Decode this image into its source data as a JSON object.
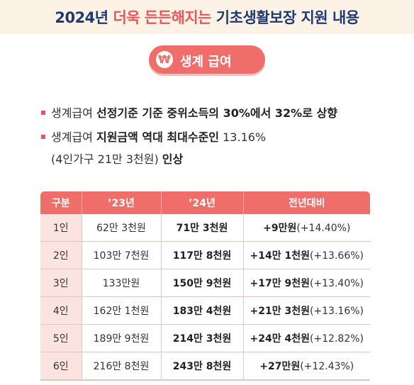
{
  "header": {
    "title_a": "2024년 ",
    "title_b": "더욱 든든해지는",
    "title_c": " 기초생활보장 지원 내용"
  },
  "section": {
    "icon": "won-coin-icon",
    "won_symbol": "₩",
    "label": "생계 급여"
  },
  "bullets": [
    {
      "pre": "생계급여 ",
      "bold": "선정기준 기준 중위소득의 30%에서 32%로 상향",
      "post": ""
    },
    {
      "pre": "생계급여 ",
      "bold": "지원금액 역대 최대수준인",
      "post": " 13.16%"
    }
  ],
  "bullet_cont": {
    "text": "(4인가구 21만 3천원) ",
    "bold": "인상"
  },
  "table": {
    "headers": [
      "구분",
      "’23년",
      "’24년",
      "전년대비"
    ],
    "rows": [
      {
        "group": "1인",
        "y23": "62만 3천원",
        "y24": "71만 3천원",
        "diff_amt": "+9만원",
        "diff_pct": "(+14.40%)"
      },
      {
        "group": "2인",
        "y23": "103만 7천원",
        "y24": "117만 8천원",
        "diff_amt": "+14만 1천원",
        "diff_pct": "(+13.66%)"
      },
      {
        "group": "3인",
        "y23": "133만원",
        "y24": "150만 9천원",
        "diff_amt": "+17만 9천원",
        "diff_pct": "(+13.40%)"
      },
      {
        "group": "4인",
        "y23": "162만 1천원",
        "y24": "183만 4천원",
        "diff_amt": "+21만 3천원",
        "diff_pct": "(+13.16%)"
      },
      {
        "group": "5인",
        "y23": "189만 9천원",
        "y24": "214만 3천원",
        "diff_amt": "+24만 4천원",
        "diff_pct": "(+12.82%)"
      },
      {
        "group": "6인",
        "y23": "216만 8천원",
        "y24": "243만 8천원",
        "diff_amt": "+27만원",
        "diff_pct": "(+12.43%)"
      }
    ]
  },
  "colors": {
    "accent": "#ef6e6a",
    "title": "#1f3a73",
    "band": "#fcf3e6"
  }
}
